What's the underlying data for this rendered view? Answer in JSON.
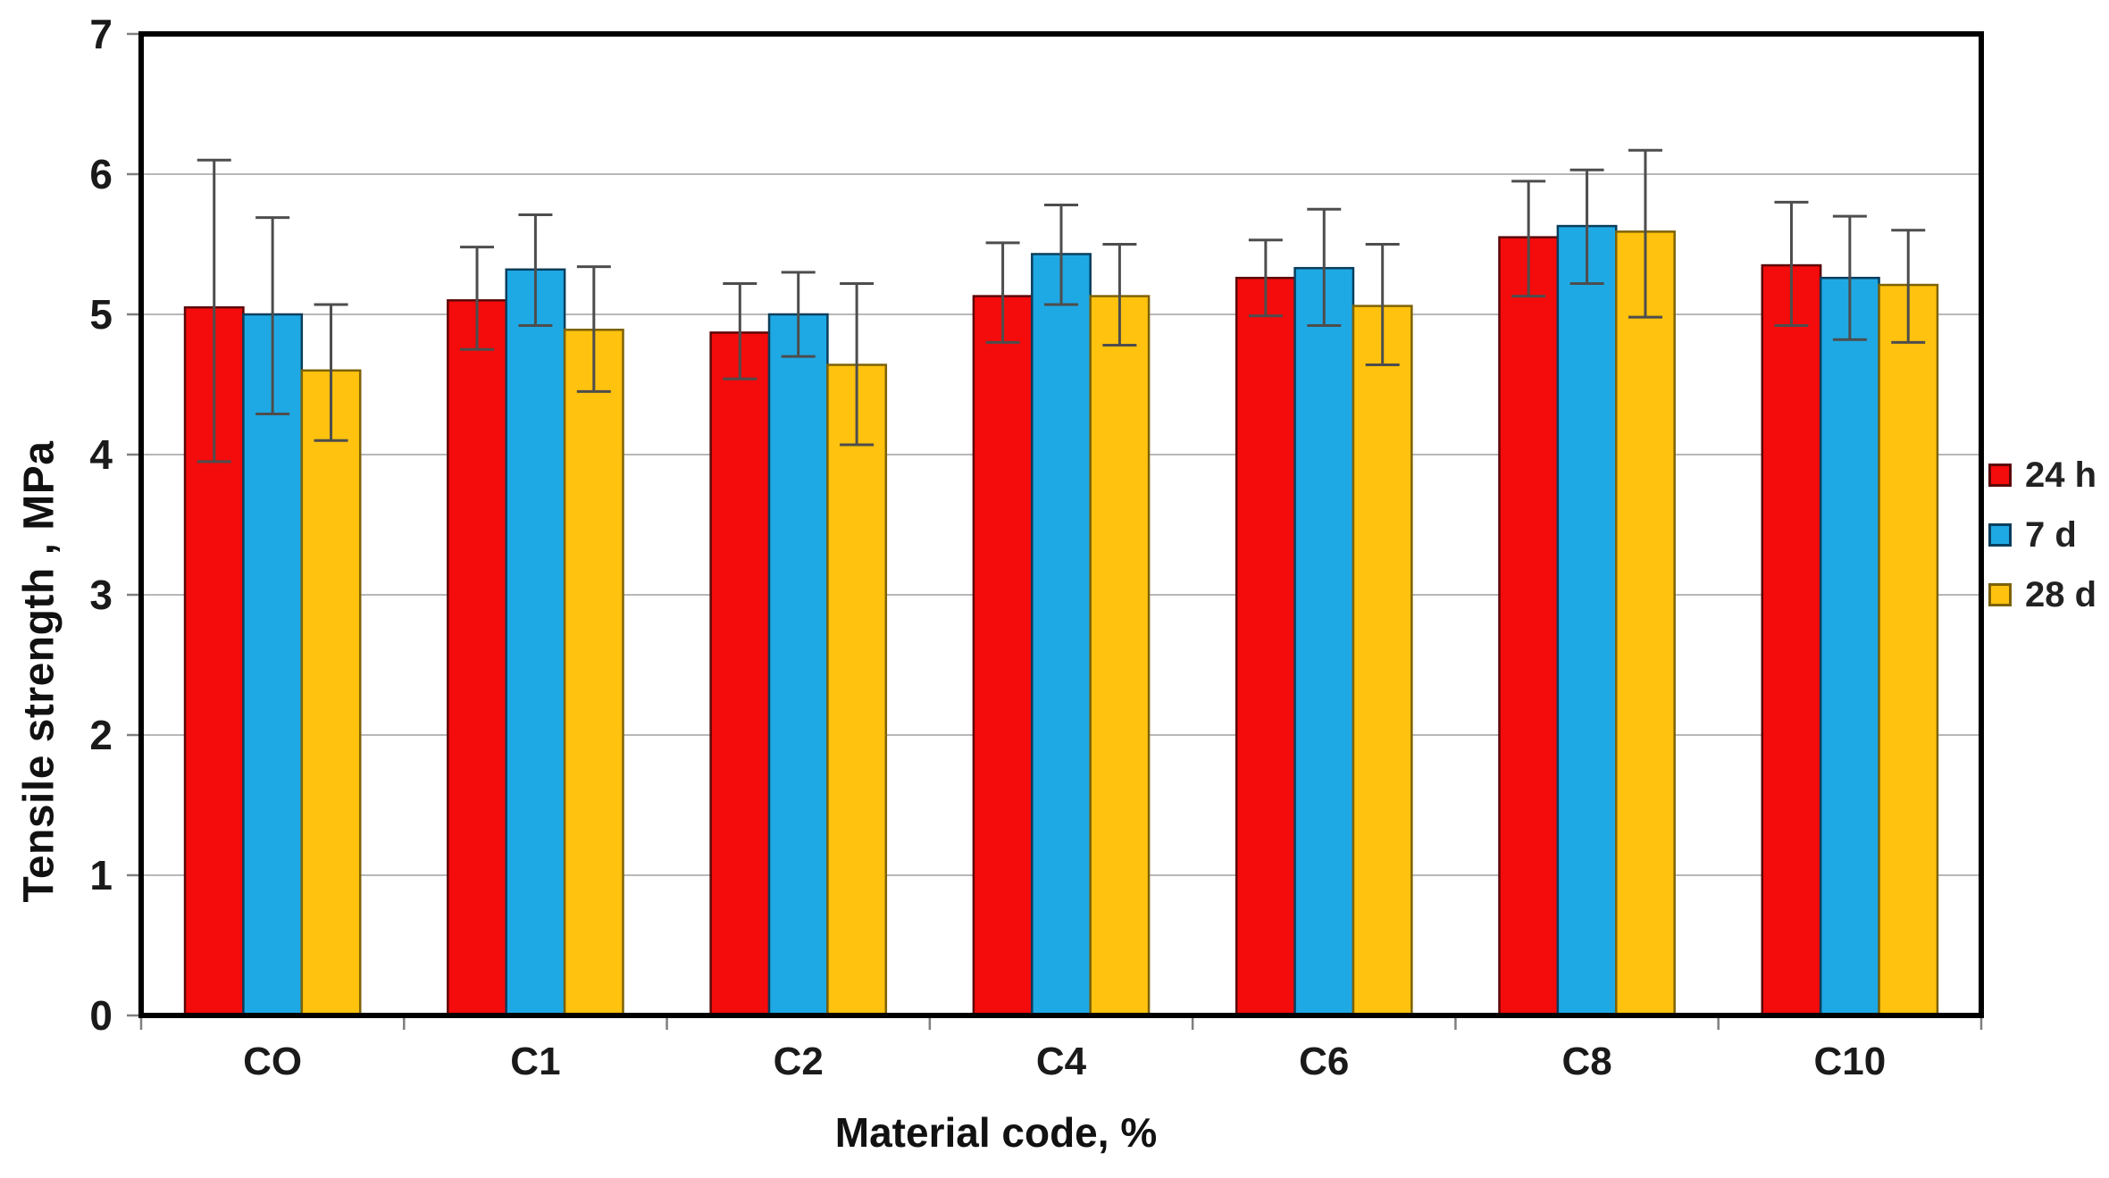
{
  "chart_data": {
    "type": "bar",
    "title": "",
    "xlabel": "Material code, %",
    "ylabel": "Tensile strength , MPa",
    "ylim": [
      0,
      7
    ],
    "yticks": [
      0,
      1,
      2,
      3,
      4,
      5,
      6,
      7
    ],
    "grid": "horizontal",
    "gridline_color": "#b8b8b8",
    "frame_color": "#000000",
    "tick_color": "#7f7f7f",
    "error_bar_color": "#4d4d4d",
    "background": "#ffffff",
    "legend_position": "right-outside",
    "categories": [
      "CO",
      "C1",
      "C2",
      "C4",
      "C6",
      "C8",
      "C10"
    ],
    "series": [
      {
        "name": "24 h",
        "color": "#f40b0b",
        "edge": "#5c0808",
        "values": [
          5.05,
          5.1,
          4.87,
          5.13,
          5.26,
          5.55,
          5.35
        ],
        "err_lo": [
          3.95,
          4.75,
          4.54,
          4.8,
          4.99,
          5.13,
          4.92
        ],
        "err_hi": [
          6.1,
          5.48,
          5.22,
          5.51,
          5.53,
          5.95,
          5.8
        ]
      },
      {
        "name": "7 d",
        "color": "#1fa9e4",
        "edge": "#0b3e5c",
        "values": [
          5.0,
          5.32,
          5.0,
          5.43,
          5.33,
          5.63,
          5.26
        ],
        "err_lo": [
          4.29,
          4.92,
          4.7,
          5.07,
          4.92,
          5.22,
          4.82
        ],
        "err_hi": [
          5.69,
          5.71,
          5.3,
          5.78,
          5.75,
          6.03,
          5.7
        ]
      },
      {
        "name": "28 d",
        "color": "#ffc20e",
        "edge": "#7d6206",
        "values": [
          4.6,
          4.89,
          4.64,
          5.13,
          5.06,
          5.59,
          5.21
        ],
        "err_lo": [
          4.1,
          4.45,
          4.07,
          4.78,
          4.64,
          4.98,
          4.8
        ],
        "err_hi": [
          5.07,
          5.34,
          5.22,
          5.5,
          5.5,
          6.17,
          5.6
        ]
      }
    ]
  }
}
